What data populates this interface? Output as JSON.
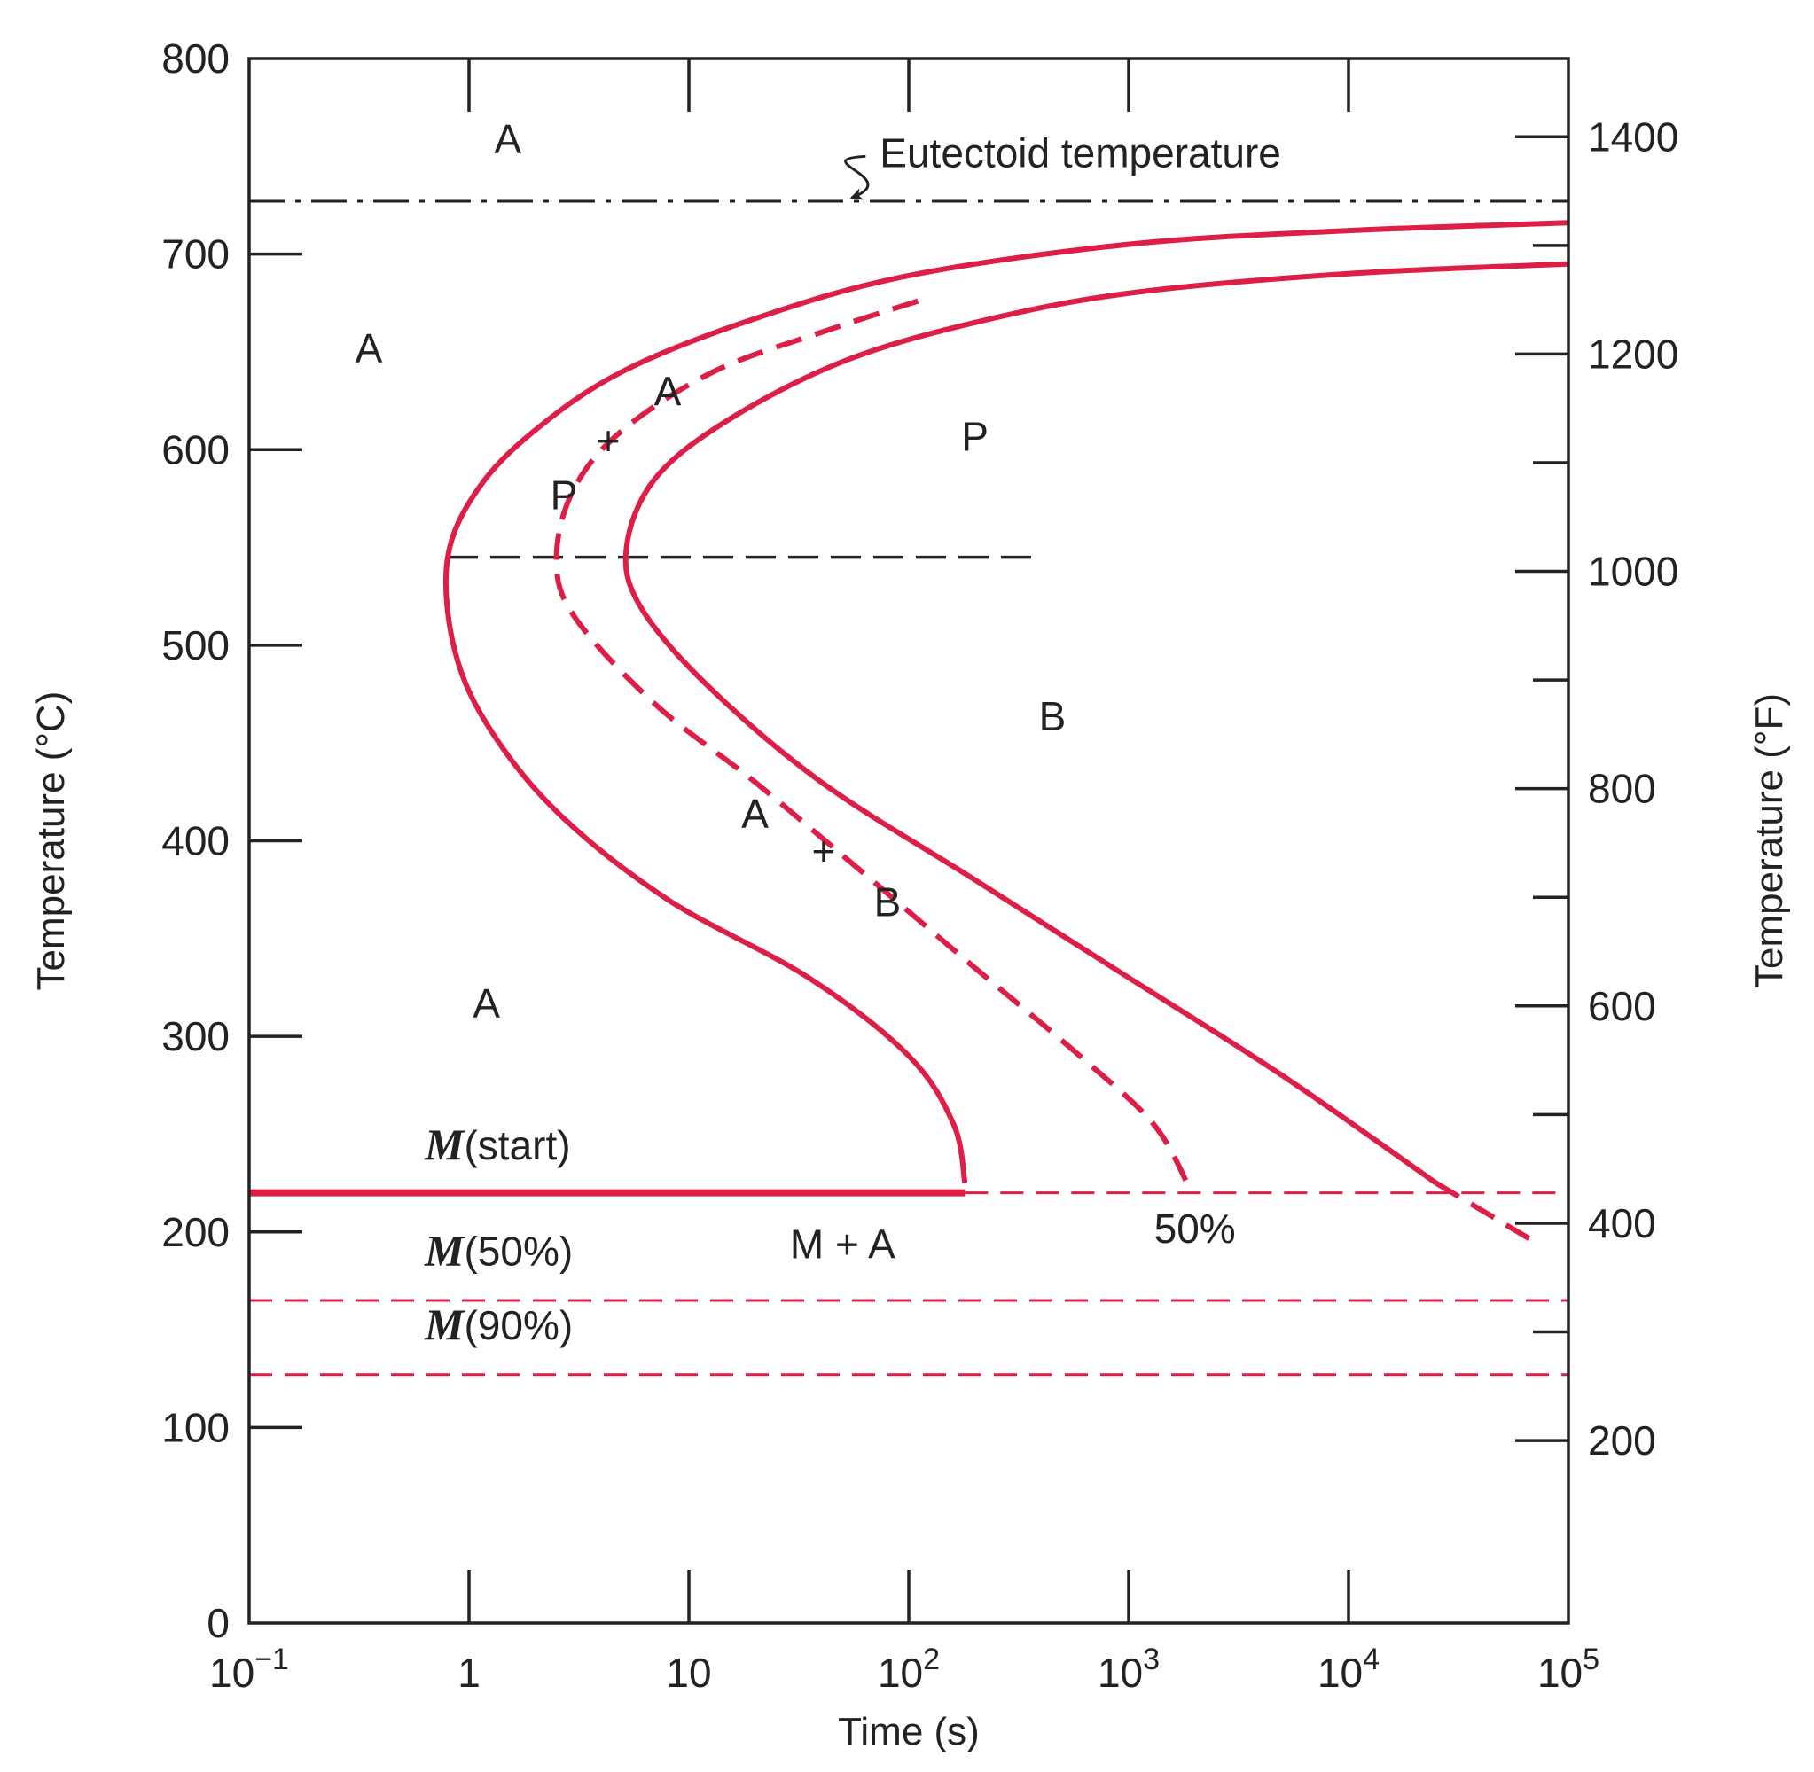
{
  "chart_data": {
    "type": "line",
    "x_axis": {
      "label": "Time (s)",
      "scale": "log",
      "range": [
        0.1,
        100000
      ],
      "ticks": [
        {
          "value": 0.1,
          "base": "10",
          "exp": "−1"
        },
        {
          "value": 1,
          "base": "1",
          "exp": ""
        },
        {
          "value": 10,
          "base": "10",
          "exp": ""
        },
        {
          "value": 100,
          "base": "10",
          "exp": "2"
        },
        {
          "value": 1000,
          "base": "10",
          "exp": "3"
        },
        {
          "value": 10000,
          "base": "10",
          "exp": "4"
        },
        {
          "value": 100000,
          "base": "10",
          "exp": "5"
        }
      ]
    },
    "y_axis_left": {
      "label": "Temperature (°C)",
      "range": [
        0,
        800
      ],
      "ticks": [
        0,
        100,
        200,
        300,
        400,
        500,
        600,
        700,
        800
      ],
      "minor_ticks": []
    },
    "y_axis_right": {
      "label": "Temperature (°F)",
      "range": [
        32,
        1472
      ],
      "ticks": [
        200,
        400,
        600,
        800,
        1000,
        1200,
        1400
      ],
      "minor_ticks": [
        300,
        500,
        700,
        900,
        1100,
        1300
      ]
    },
    "curves": [
      {
        "id": "start",
        "style": "solid",
        "points": [
          [
            100000,
            716
          ],
          [
            10000,
            712
          ],
          [
            1000,
            705
          ],
          [
            100,
            689
          ],
          [
            20,
            667
          ],
          [
            5,
            640
          ],
          [
            2,
            610
          ],
          [
            1.1,
            580
          ],
          [
            0.8,
            545
          ],
          [
            0.85,
            500
          ],
          [
            1.2,
            460
          ],
          [
            2.5,
            415
          ],
          [
            8,
            370
          ],
          [
            35,
            330
          ],
          [
            100,
            290
          ],
          [
            160,
            255
          ],
          [
            180,
            225
          ]
        ]
      },
      {
        "id": "half",
        "style": "dashed",
        "points": [
          [
            110,
            676
          ],
          [
            40,
            660
          ],
          [
            13,
            640
          ],
          [
            5,
            610
          ],
          [
            3,
            580
          ],
          [
            2.5,
            545
          ],
          [
            3,
            515
          ],
          [
            7,
            470
          ],
          [
            20,
            430
          ],
          [
            60,
            385
          ],
          [
            200,
            335
          ],
          [
            600,
            290
          ],
          [
            1300,
            255
          ],
          [
            1900,
            222
          ]
        ]
      },
      {
        "id": "finish",
        "style": "solid",
        "points": [
          [
            100000,
            695
          ],
          [
            10000,
            690
          ],
          [
            1000,
            680
          ],
          [
            200,
            665
          ],
          [
            50,
            645
          ],
          [
            15,
            615
          ],
          [
            7,
            585
          ],
          [
            5.2,
            550
          ],
          [
            6,
            520
          ],
          [
            12,
            480
          ],
          [
            40,
            430
          ],
          [
            200,
            380
          ],
          [
            1000,
            330
          ],
          [
            5000,
            280
          ],
          [
            25000,
            225
          ]
        ]
      },
      {
        "id": "finish-tail",
        "style": "dashed",
        "points": [
          [
            25000,
            225
          ],
          [
            70000,
            195
          ]
        ]
      }
    ],
    "reference_lines": [
      {
        "id": "eutectoid",
        "value": 727,
        "style": "dash-dot"
      },
      {
        "id": "nose",
        "value": 545,
        "x_range": [
          0.8,
          400
        ],
        "style": "dashed"
      },
      {
        "id": "m-start",
        "value": 220,
        "style": "solid-then-dashed",
        "solid_until": 180
      },
      {
        "id": "m-50",
        "value": 165,
        "style": "dashed"
      },
      {
        "id": "m-90",
        "value": 127,
        "style": "dashed"
      }
    ],
    "annotations": [
      {
        "id": "region-a-top",
        "text": "A",
        "x": 1.5,
        "y": 757
      },
      {
        "id": "region-a-left",
        "text": "A",
        "x": 0.35,
        "y": 650
      },
      {
        "id": "region-a-mid",
        "text": "A",
        "x": 8,
        "y": 628
      },
      {
        "id": "region-plus-1",
        "text": "+",
        "x": 4.3,
        "y": 603
      },
      {
        "id": "region-p-mid",
        "text": "P",
        "x": 2.7,
        "y": 575
      },
      {
        "id": "region-p-right",
        "text": "P",
        "x": 200,
        "y": 605
      },
      {
        "id": "region-b-right",
        "text": "B",
        "x": 450,
        "y": 462
      },
      {
        "id": "region-a-lower-mid",
        "text": "A",
        "x": 20,
        "y": 412
      },
      {
        "id": "region-plus-2",
        "text": "+",
        "x": 41,
        "y": 393
      },
      {
        "id": "region-b-mid",
        "text": "B",
        "x": 80,
        "y": 367
      },
      {
        "id": "region-a-bottom",
        "text": "A",
        "x": 1.2,
        "y": 315
      },
      {
        "id": "region-m-a",
        "text": "M + A",
        "x": 50,
        "y": 192
      },
      {
        "id": "half-percent",
        "text": "50%",
        "x": 2000,
        "y": 200
      }
    ],
    "m_labels": [
      {
        "id": "m-start-label",
        "italic": "M",
        "rest": "(start)",
        "x": 1.0,
        "y": 237
      },
      {
        "id": "m-50-label",
        "italic": "M",
        "rest": "(50%)",
        "x": 1.0,
        "y": 183
      },
      {
        "id": "m-90-label",
        "italic": "M",
        "rest": "(90%)",
        "x": 1.0,
        "y": 145
      }
    ],
    "eutectoid_label": {
      "text": "Eutectoid temperature",
      "x": 180,
      "y": 750
    },
    "colors": {
      "curve": "#dd1f48",
      "reference": "#222222",
      "text": "#222222",
      "frame": "#222222"
    }
  }
}
